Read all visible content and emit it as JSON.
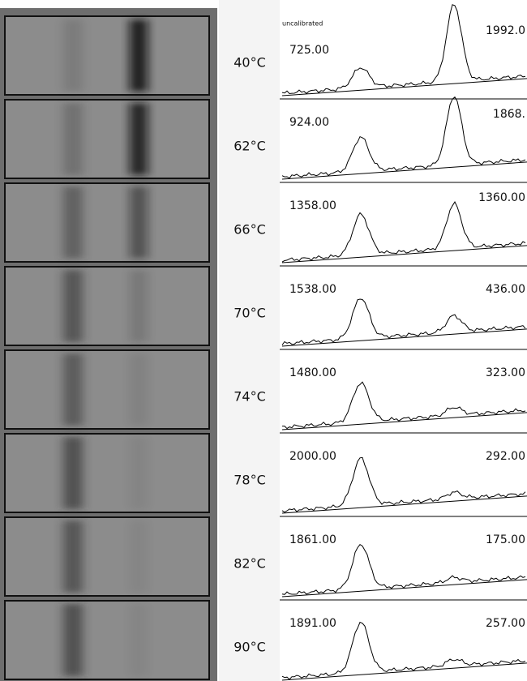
{
  "note_label": "uncalibrated",
  "rows": [
    {
      "temperature": "40°C",
      "peak1": "725.00",
      "peak2": "1992.0"
    },
    {
      "temperature": "62°C",
      "peak1": "924.00",
      "peak2": "1868."
    },
    {
      "temperature": "66°C",
      "peak1": "1358.00",
      "peak2": "1360.00"
    },
    {
      "temperature": "70°C",
      "peak1": "1538.00",
      "peak2": "436.00"
    },
    {
      "temperature": "74°C",
      "peak1": "1480.00",
      "peak2": "323.00"
    },
    {
      "temperature": "78°C",
      "peak1": "2000.00",
      "peak2": "292.00"
    },
    {
      "temperature": "82°C",
      "peak1": "1861.00",
      "peak2": "175.00"
    },
    {
      "temperature": "90°C",
      "peak1": "1891.00",
      "peak2": "257.00"
    }
  ]
}
